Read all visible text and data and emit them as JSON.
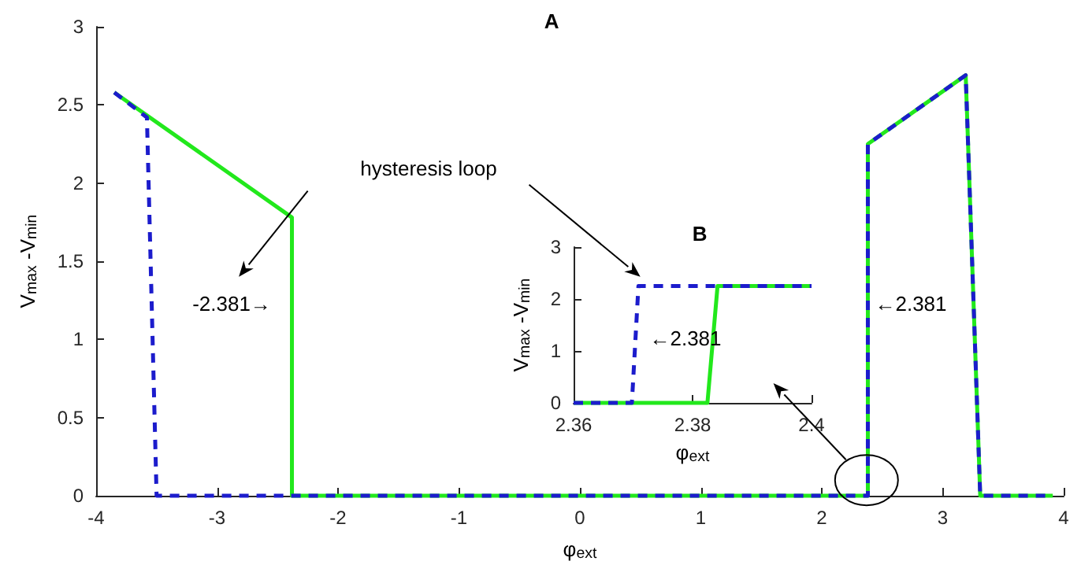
{
  "chart_data": [
    {
      "type": "line",
      "title": "A",
      "xlabel": "φ$_{ext}$",
      "ylabel": "V$_{max}$ -V$_{min}$",
      "xlim": [
        -4,
        4
      ],
      "xticks": [
        -4,
        -3,
        -2,
        -1,
        0,
        1,
        2,
        3,
        4
      ],
      "ylim": [
        0,
        3
      ],
      "yticks": [
        0,
        0.5,
        1,
        1.5,
        2,
        2.5,
        3
      ],
      "grid": false,
      "marker": "none",
      "series": [
        {
          "color": "#22e81c",
          "line_style": "solid",
          "x": [
            -3.85,
            -2.381,
            -2.381,
            2.381,
            2.381,
            3.19,
            3.31,
            3.91
          ],
          "values": [
            2.58,
            1.78,
            0,
            0,
            2.25,
            2.69,
            0,
            0
          ]
        },
        {
          "color": "#1c1ccc",
          "line_style": "dashed",
          "x": [
            -3.85,
            -3.58,
            -3.5,
            2.381,
            2.381,
            3.19,
            3.31,
            3.91
          ],
          "values": [
            2.58,
            2.42,
            0,
            0,
            2.25,
            2.69,
            0,
            0
          ]
        }
      ],
      "annotations": [
        "hysteresis loop",
        "-2.381→",
        "←2.381"
      ]
    },
    {
      "type": "line",
      "title": "B",
      "xlabel": "φ$_{ext}$",
      "ylabel": "V$_{max}$ -V$_{min}$",
      "xlim": [
        2.36,
        2.4
      ],
      "xticks": [
        2.36,
        2.38,
        2.4
      ],
      "ylim": [
        0,
        3
      ],
      "yticks": [
        0,
        1,
        2,
        3
      ],
      "grid": false,
      "marker": "none",
      "series": [
        {
          "color": "#22e81c",
          "line_style": "solid",
          "x": [
            2.36,
            2.3825,
            2.3842,
            2.4
          ],
          "values": [
            0,
            0,
            2.25,
            2.25
          ]
        },
        {
          "color": "#1c1ccc",
          "line_style": "dashed",
          "x": [
            2.36,
            2.3698,
            2.3709,
            2.4
          ],
          "values": [
            0,
            0,
            2.25,
            2.25
          ]
        }
      ],
      "annotations": [
        "←2.381"
      ]
    }
  ]
}
